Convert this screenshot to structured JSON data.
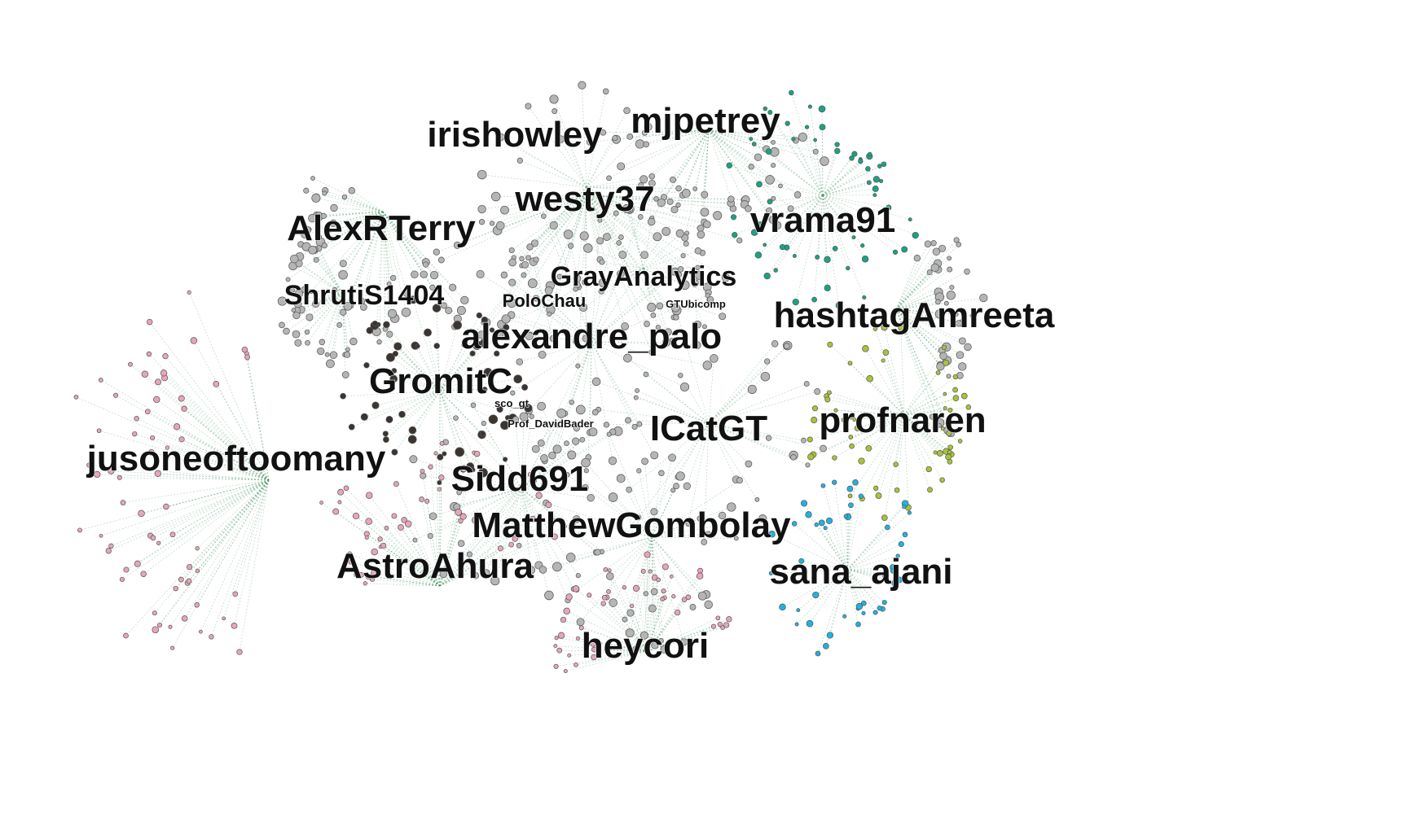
{
  "graph": {
    "colors": {
      "edge": "#4f9a6a",
      "node_gray": "#b5b5b5",
      "node_dark": "#3b3531",
      "node_teal": "#19a384",
      "node_olive": "#a8c23a",
      "node_cyan": "#1fb3e0",
      "node_pink": "#e6a5b8",
      "label": "#111111"
    },
    "hubs": [
      {
        "id": "jusoneoftoomany",
        "label": "jusoneoftoomany",
        "size": "xl",
        "cluster": "pink"
      },
      {
        "id": "irishowley",
        "label": "irishowley",
        "size": "xl",
        "cluster": "gray"
      },
      {
        "id": "mjpetrey",
        "label": "mjpetrey",
        "size": "xl",
        "cluster": "gray"
      },
      {
        "id": "westy37",
        "label": "westy37",
        "size": "xl",
        "cluster": "gray"
      },
      {
        "id": "AlexRTerry",
        "label": "AlexRTerry",
        "size": "xl",
        "cluster": "gray"
      },
      {
        "id": "vrama91",
        "label": "vrama91",
        "size": "xl",
        "cluster": "teal"
      },
      {
        "id": "ShrutiS1404",
        "label": "ShrutiS1404",
        "size": "l",
        "cluster": "gray"
      },
      {
        "id": "GrayAnalytics",
        "label": "GrayAnalytics",
        "size": "l",
        "cluster": "gray"
      },
      {
        "id": "PoloChau",
        "label": "PoloChau",
        "size": "m",
        "cluster": "gray"
      },
      {
        "id": "GTUbicomp",
        "label": "GTUbicomp",
        "size": "s",
        "cluster": "gray"
      },
      {
        "id": "hashtagAmreeta",
        "label": "hashtagAmreeta",
        "size": "xl",
        "cluster": "gray"
      },
      {
        "id": "alexandre_palo",
        "label": "alexandre_palo",
        "size": "xl",
        "cluster": "gray"
      },
      {
        "id": "GromitC",
        "label": "GromitC",
        "size": "xl",
        "cluster": "dark"
      },
      {
        "id": "sco_gt",
        "label": "sco_gt",
        "size": "s",
        "cluster": "dark"
      },
      {
        "id": "Prof_DavidBader",
        "label": "Prof_DavidBader",
        "size": "s",
        "cluster": "gray"
      },
      {
        "id": "ICatGT",
        "label": "ICatGT",
        "size": "xl",
        "cluster": "gray"
      },
      {
        "id": "profnaren",
        "label": "profnaren",
        "size": "xl",
        "cluster": "olive"
      },
      {
        "id": "Sidd691",
        "label": "Sidd691",
        "size": "xl",
        "cluster": "gray"
      },
      {
        "id": "MatthewGombolay",
        "label": "MatthewGombolay",
        "size": "xl",
        "cluster": "gray"
      },
      {
        "id": "AstroAhura",
        "label": "AstroAhura",
        "size": "xl",
        "cluster": "pink"
      },
      {
        "id": "sana_ajani",
        "label": "sana_ajani",
        "size": "xl",
        "cluster": "cyan"
      },
      {
        "id": "heycori",
        "label": "heycori",
        "size": "xl",
        "cluster": "pink"
      }
    ]
  }
}
